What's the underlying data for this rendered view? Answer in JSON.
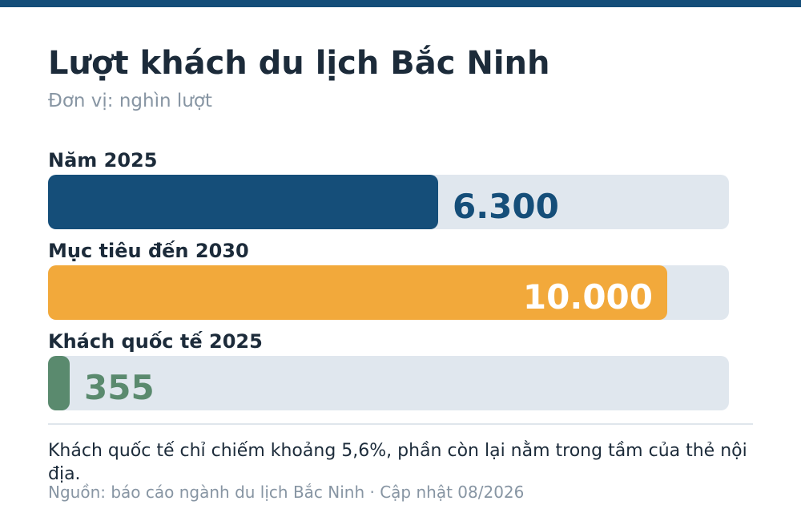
{
  "header": {
    "title": "Lượt khách du lịch Bắc Ninh",
    "subtitle": "Đơn vị: nghìn lượt"
  },
  "colors": {
    "topbar": "#154e79",
    "track": "#e0e7ee",
    "bar_2025": "#154e79",
    "bar_2030": "#f2a93b",
    "bar_intl": "#5a8a6e"
  },
  "chart_data": {
    "type": "bar",
    "orientation": "horizontal",
    "title": "Lượt khách du lịch Bắc Ninh",
    "subtitle": "Đơn vị: nghìn lượt",
    "scale_max": 11000,
    "bars": [
      {
        "label": "Năm 2025",
        "value": 6300,
        "display": "6.300",
        "color": "#154e79",
        "value_color": "#154e79",
        "value_position": "outside"
      },
      {
        "label": "Mục tiêu đến 2030",
        "value": 10000,
        "display": "10.000",
        "color": "#f2a93b",
        "value_color": "#ffffff",
        "value_position": "inside"
      },
      {
        "label": "Khách quốc tế 2025",
        "value": 355,
        "display": "355",
        "color": "#5a8a6e",
        "value_color": "#5a8a6e",
        "value_position": "outside"
      }
    ]
  },
  "footer": {
    "note": "Khách quốc tế chỉ chiếm khoảng 5,6%, phần còn lại nằm trong tầm của thẻ nội địa.",
    "source": "Nguồn: báo cáo ngành du lịch Bắc Ninh · Cập nhật 08/2026"
  }
}
